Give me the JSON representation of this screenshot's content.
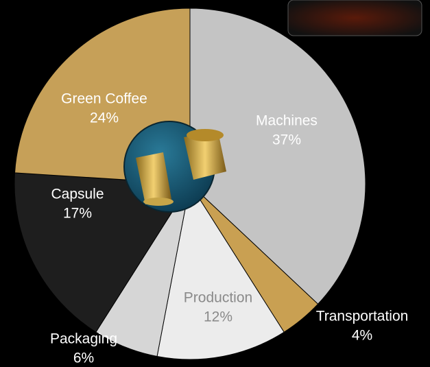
{
  "chart_data": {
    "type": "pie",
    "categories": [
      "Machines",
      "Transportation",
      "Production",
      "Packaging",
      "Capsule",
      "Green Coffee"
    ],
    "values": [
      37,
      4,
      12,
      6,
      17,
      24
    ],
    "value_labels": [
      "37%",
      "4%",
      "12%",
      "6%",
      "17%",
      "24%"
    ],
    "colors": [
      "#c4c4c4",
      "#c9a052",
      "#ececec",
      "#d6d6d6",
      "#1e1e1e",
      "#c6a058"
    ]
  }
}
